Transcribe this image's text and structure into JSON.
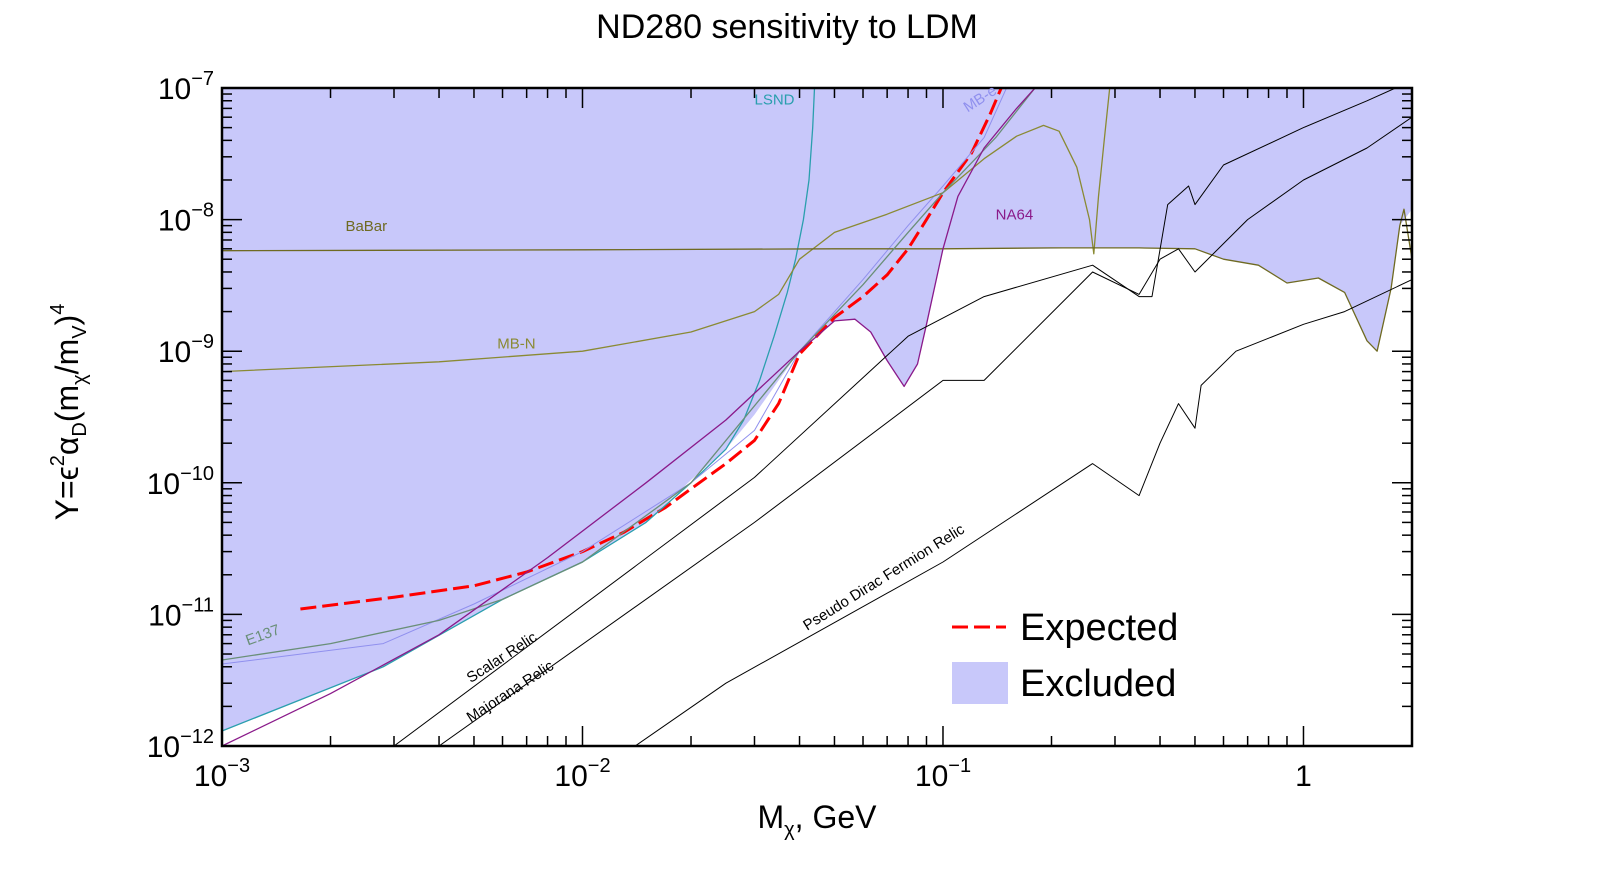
{
  "chart_data": {
    "type": "line",
    "title": "ND280 sensitivity to LDM",
    "xlabel": {
      "main": "M",
      "sub": "χ",
      "tail": ", GeV"
    },
    "ylabel": {
      "p1": "Y=ϵ",
      "s1": "2",
      "p2": "α",
      "b1": "D",
      "p3": "(m",
      "b2": "χ",
      "p4": "/m",
      "b3": "V",
      "p5": ")",
      "s2": "4"
    },
    "x_scale": "log",
    "y_scale": "log",
    "xlim": [
      0.001,
      2.0
    ],
    "ylim": [
      1e-12,
      1e-07
    ],
    "x_ticks": [
      {
        "value": 0.001,
        "base": "10",
        "exp": "−3"
      },
      {
        "value": 0.01,
        "base": "10",
        "exp": "−2"
      },
      {
        "value": 0.1,
        "base": "10",
        "exp": "−1"
      },
      {
        "value": 1,
        "base": "1",
        "exp": ""
      }
    ],
    "y_ticks": [
      {
        "value": 1e-12,
        "base": "10",
        "exp": "−12"
      },
      {
        "value": 1e-11,
        "base": "10",
        "exp": "−11"
      },
      {
        "value": 1e-10,
        "base": "10",
        "exp": "−10"
      },
      {
        "value": 1e-09,
        "base": "10",
        "exp": "−9"
      },
      {
        "value": 1e-08,
        "base": "10",
        "exp": "−8"
      },
      {
        "value": 1e-07,
        "base": "10",
        "exp": "−7"
      }
    ],
    "grid": false,
    "legend_position": "bottom-right",
    "legend": [
      {
        "label": "Expected",
        "kind": "line",
        "color": "#ff0000"
      },
      {
        "label": "Excluded",
        "kind": "box",
        "color": "#c8c8fa"
      }
    ],
    "excluded_region": {
      "color": "#c8c8fa",
      "boundary": [
        [
          0.001,
          1.3e-12
        ],
        [
          0.0028,
          4e-12
        ],
        [
          0.006,
          1.3e-11
        ],
        [
          0.01,
          2.5e-11
        ],
        [
          0.015,
          5e-11
        ],
        [
          0.02,
          1.05e-10
        ],
        [
          0.025,
          1.8e-10
        ],
        [
          0.03,
          3.3e-10
        ],
        [
          0.035,
          6e-10
        ],
        [
          0.04,
          1e-09
        ],
        [
          0.045,
          1.4e-09
        ],
        [
          0.05,
          1.7e-09
        ],
        [
          0.057,
          1.75e-09
        ],
        [
          0.063,
          1.4e-09
        ],
        [
          0.07,
          8.5e-10
        ],
        [
          0.078,
          5.4e-10
        ],
        [
          0.085,
          8e-10
        ],
        [
          0.09,
          1.6e-09
        ],
        [
          0.1,
          6e-09
        ],
        [
          0.2,
          6e-09
        ],
        [
          0.26,
          6.1e-09
        ],
        [
          0.35,
          6.1e-09
        ],
        [
          0.5,
          6e-09
        ],
        [
          0.6,
          5e-09
        ],
        [
          0.75,
          4.5e-09
        ],
        [
          0.9,
          3.3e-09
        ],
        [
          1.1,
          3.6e-09
        ],
        [
          1.3,
          2.8e-09
        ],
        [
          1.5,
          1.2e-09
        ],
        [
          1.6,
          1e-09
        ],
        [
          1.75,
          3e-09
        ],
        [
          1.85,
          9e-09
        ],
        [
          2.0,
          1.2e-08
        ]
      ]
    },
    "series": [
      {
        "name": "Expected",
        "style": "dashed",
        "color": "#ff0000",
        "width": 3,
        "points": [
          [
            0.00165,
            1.1e-11
          ],
          [
            0.003,
            1.35e-11
          ],
          [
            0.005,
            1.65e-11
          ],
          [
            0.007,
            2.1e-11
          ],
          [
            0.01,
            3e-11
          ],
          [
            0.013,
            4.2e-11
          ],
          [
            0.017,
            6.5e-11
          ],
          [
            0.02,
            9e-11
          ],
          [
            0.025,
            1.4e-10
          ],
          [
            0.03,
            2.1e-10
          ],
          [
            0.035,
            4e-10
          ],
          [
            0.04,
            9.5e-10
          ],
          [
            0.05,
            1.8e-09
          ],
          [
            0.06,
            2.6e-09
          ],
          [
            0.07,
            3.8e-09
          ],
          [
            0.08,
            6e-09
          ],
          [
            0.09,
            1e-08
          ],
          [
            0.1,
            1.6e-08
          ],
          [
            0.12,
            3.2e-08
          ],
          [
            0.135,
            6.3e-08
          ],
          [
            0.145,
            1e-07
          ]
        ]
      },
      {
        "name": "LSND",
        "color": "#2a9fae",
        "width": 1.3,
        "points": [
          [
            0.001,
            1.3e-12
          ],
          [
            0.0028,
            4e-12
          ],
          [
            0.006,
            1.3e-11
          ],
          [
            0.01,
            2.5e-11
          ],
          [
            0.015,
            5e-11
          ],
          [
            0.02,
            1e-10
          ],
          [
            0.025,
            1.8e-10
          ],
          [
            0.028,
            3e-10
          ],
          [
            0.031,
            6e-10
          ],
          [
            0.034,
            1.3e-09
          ],
          [
            0.037,
            2.8e-09
          ],
          [
            0.039,
            5e-09
          ],
          [
            0.041,
            1e-08
          ],
          [
            0.0425,
            2e-08
          ],
          [
            0.0435,
            5e-08
          ],
          [
            0.044,
            1e-07
          ]
        ]
      },
      {
        "name": "MB-e",
        "color": "#9090ee",
        "width": 1,
        "points": [
          [
            0.001,
            4.2e-12
          ],
          [
            0.0028,
            6e-12
          ],
          [
            0.005,
            1.2e-11
          ],
          [
            0.01,
            3e-11
          ],
          [
            0.02,
            1e-10
          ],
          [
            0.03,
            2.5e-10
          ],
          [
            0.04,
            1e-09
          ],
          [
            0.06,
            3.5e-09
          ],
          [
            0.08,
            9e-09
          ],
          [
            0.1,
            1.8e-08
          ],
          [
            0.13,
            4.2e-08
          ],
          [
            0.15,
            1e-07
          ]
        ]
      },
      {
        "name": "MB-N",
        "color": "#8a8a33",
        "width": 1.3,
        "points": [
          [
            0.001,
            7e-10
          ],
          [
            0.004,
            8.3e-10
          ],
          [
            0.01,
            1e-09
          ],
          [
            0.02,
            1.4e-09
          ],
          [
            0.03,
            2e-09
          ],
          [
            0.035,
            2.7e-09
          ],
          [
            0.04,
            5e-09
          ],
          [
            0.05,
            8e-09
          ],
          [
            0.07,
            1.1e-08
          ],
          [
            0.1,
            1.6e-08
          ],
          [
            0.13,
            2.9e-08
          ],
          [
            0.16,
            4.3e-08
          ],
          [
            0.19,
            5.2e-08
          ],
          [
            0.21,
            4.7e-08
          ],
          [
            0.235,
            2.5e-08
          ],
          [
            0.255,
            1e-08
          ],
          [
            0.262,
            5.5e-09
          ],
          [
            0.27,
            1.5e-08
          ],
          [
            0.28,
            4e-08
          ],
          [
            0.29,
            1e-07
          ]
        ]
      },
      {
        "name": "BaBar",
        "color": "#6f6a22",
        "width": 1.3,
        "points": [
          [
            0.001,
            5.8e-09
          ],
          [
            0.01,
            5.9e-09
          ],
          [
            0.05,
            6e-09
          ],
          [
            0.1,
            6e-09
          ],
          [
            0.2,
            6.1e-09
          ],
          [
            0.35,
            6.1e-09
          ],
          [
            0.5,
            6e-09
          ],
          [
            0.6,
            5e-09
          ],
          [
            0.75,
            4.5e-09
          ],
          [
            0.9,
            3.3e-09
          ],
          [
            1.1,
            3.6e-09
          ],
          [
            1.3,
            2.8e-09
          ],
          [
            1.5,
            1.2e-09
          ],
          [
            1.6,
            1e-09
          ],
          [
            1.75,
            3e-09
          ],
          [
            1.85,
            9e-09
          ],
          [
            1.9,
            1.2e-08
          ],
          [
            2.0,
            5e-09
          ]
        ]
      },
      {
        "name": "E137",
        "color": "#6a8f78",
        "width": 1.3,
        "points": [
          [
            0.001,
            4.5e-12
          ],
          [
            0.002,
            6e-12
          ],
          [
            0.004,
            9e-12
          ],
          [
            0.006,
            1.3e-11
          ],
          [
            0.01,
            2.5e-11
          ],
          [
            0.02,
            1e-10
          ],
          [
            0.04,
            1e-09
          ],
          [
            0.06,
            3.2e-09
          ],
          [
            0.08,
            8e-09
          ],
          [
            0.1,
            1.6e-08
          ],
          [
            0.14,
            4.2e-08
          ],
          [
            0.18,
            1e-07
          ]
        ]
      },
      {
        "name": "NA64",
        "color": "#8a1a8a",
        "width": 1.3,
        "points": [
          [
            0.001,
            1e-12
          ],
          [
            0.002,
            2.5e-12
          ],
          [
            0.004,
            7e-12
          ],
          [
            0.008,
            2.7e-11
          ],
          [
            0.015,
            1e-10
          ],
          [
            0.025,
            3e-10
          ],
          [
            0.04,
            1e-09
          ],
          [
            0.05,
            1.7e-09
          ],
          [
            0.057,
            1.75e-09
          ],
          [
            0.063,
            1.4e-09
          ],
          [
            0.07,
            8.5e-10
          ],
          [
            0.078,
            5.4e-10
          ],
          [
            0.085,
            8e-10
          ],
          [
            0.09,
            1.6e-09
          ],
          [
            0.1,
            6e-09
          ],
          [
            0.11,
            1.5e-08
          ],
          [
            0.13,
            3.5e-08
          ],
          [
            0.16,
            7e-08
          ],
          [
            0.18,
            1e-07
          ]
        ]
      },
      {
        "name": "Scalar Relic",
        "color": "#000000",
        "width": 1,
        "points": [
          [
            0.003,
            1e-12
          ],
          [
            0.03,
            1.1e-10
          ],
          [
            0.08,
            1.3e-09
          ],
          [
            0.13,
            2.6e-09
          ],
          [
            0.26,
            4.5e-09
          ],
          [
            0.35,
            2.6e-09
          ],
          [
            0.38,
            2.6e-09
          ],
          [
            0.42,
            1.3e-08
          ],
          [
            0.48,
            1.8e-08
          ],
          [
            0.5,
            1.3e-08
          ],
          [
            0.6,
            2.6e-08
          ],
          [
            1.0,
            5e-08
          ],
          [
            1.5,
            8e-08
          ],
          [
            1.8,
            1e-07
          ]
        ]
      },
      {
        "name": "Majorana Relic",
        "color": "#000000",
        "width": 1,
        "points": [
          [
            0.004,
            1e-12
          ],
          [
            0.03,
            5e-11
          ],
          [
            0.1,
            6e-10
          ],
          [
            0.13,
            6e-10
          ],
          [
            0.26,
            4e-09
          ],
          [
            0.35,
            2.7e-09
          ],
          [
            0.4,
            5e-09
          ],
          [
            0.45,
            6e-09
          ],
          [
            0.5,
            4e-09
          ],
          [
            0.7,
            1e-08
          ],
          [
            1.0,
            2e-08
          ],
          [
            1.5,
            3.5e-08
          ],
          [
            2.0,
            6e-08
          ]
        ]
      },
      {
        "name": "Pseudo Dirac Fermion Relic",
        "color": "#000000",
        "width": 1,
        "points": [
          [
            0.014,
            1e-12
          ],
          [
            0.025,
            3e-12
          ],
          [
            0.1,
            2.5e-11
          ],
          [
            0.26,
            1.4e-10
          ],
          [
            0.35,
            8e-11
          ],
          [
            0.4,
            2e-10
          ],
          [
            0.45,
            4e-10
          ],
          [
            0.5,
            2.6e-10
          ],
          [
            0.52,
            5.5e-10
          ],
          [
            0.65,
            1e-09
          ],
          [
            1.0,
            1.6e-09
          ],
          [
            1.3,
            2e-09
          ],
          [
            2.0,
            3.5e-09
          ]
        ]
      }
    ],
    "annotations": [
      {
        "text": "LSND",
        "x": 0.03,
        "y": 7.5e-08,
        "color": "#2a9fae",
        "angle": 0
      },
      {
        "text": "MB-e",
        "x": 0.117,
        "y": 6.5e-08,
        "color": "#9090ee",
        "angle": -33
      },
      {
        "text": "BaBar",
        "x": 0.0022,
        "y": 8.2e-09,
        "color": "#6f6a22",
        "angle": 0
      },
      {
        "text": "MB-N",
        "x": 0.0058,
        "y": 1.05e-09,
        "color": "#8a8a33",
        "angle": 0
      },
      {
        "text": "NA64",
        "x": 0.14,
        "y": 1e-08,
        "color": "#8a1a8a",
        "angle": 0
      },
      {
        "text": "E137",
        "x": 0.00118,
        "y": 5.8e-12,
        "color": "#6a8f78",
        "angle": -20
      },
      {
        "text": "Scalar Relic",
        "x": 0.0049,
        "y": 3e-12,
        "color": "#000000",
        "angle": -33
      },
      {
        "text": "Majorana Relic",
        "x": 0.0049,
        "y": 1.5e-12,
        "color": "#000000",
        "angle": -33
      },
      {
        "text": "Pseudo Dirac Fermion Relic",
        "x": 0.042,
        "y": 7.5e-12,
        "color": "#000000",
        "angle": -32
      }
    ]
  }
}
